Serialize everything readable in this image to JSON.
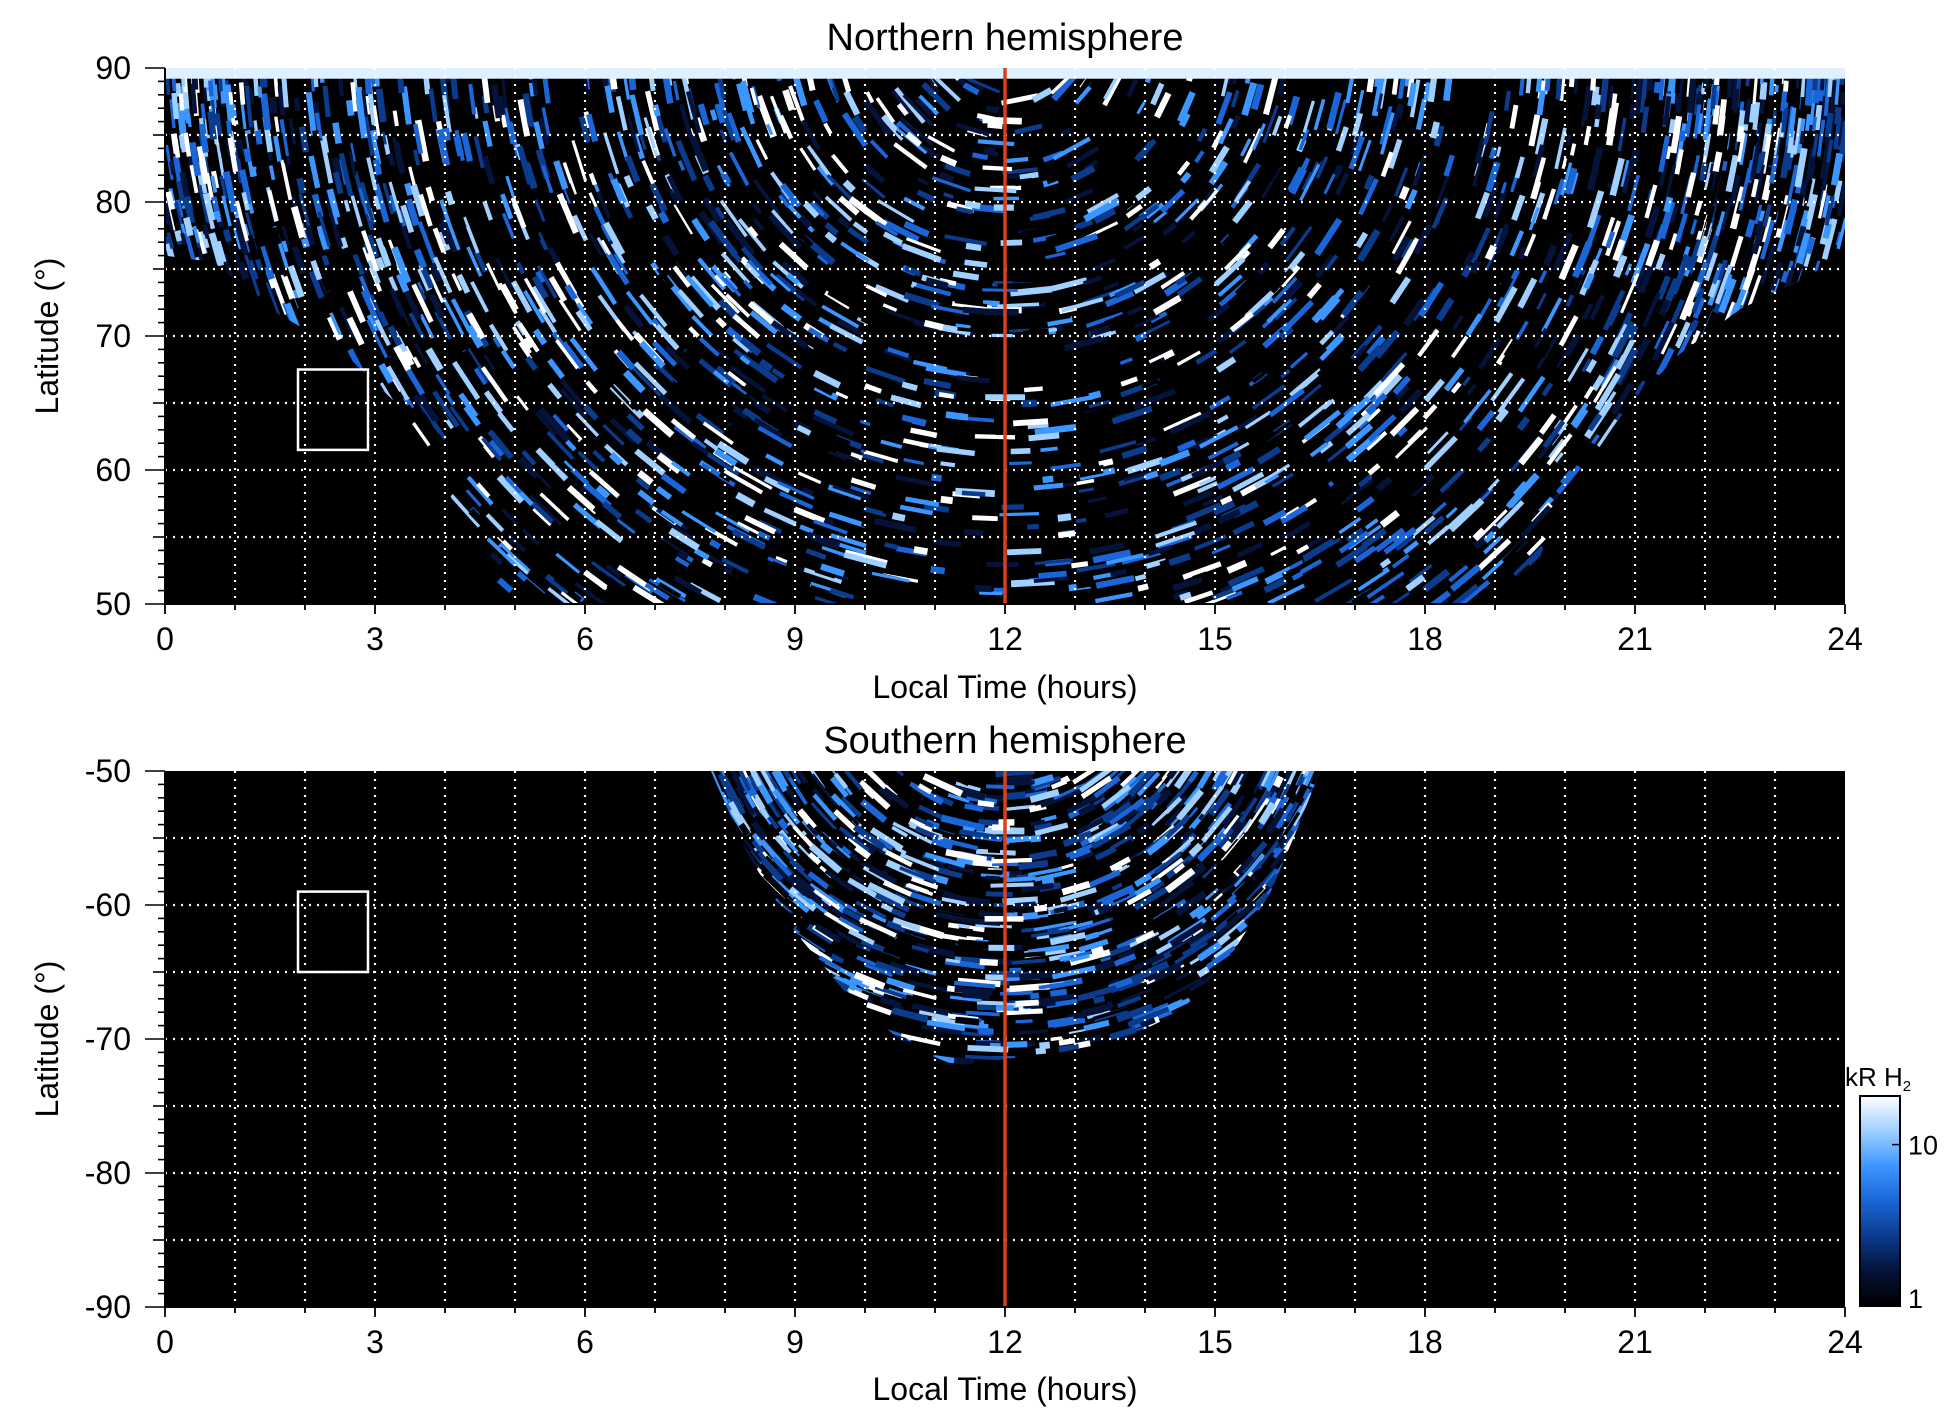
{
  "chart_data": [
    {
      "type": "heatmap",
      "title": "Northern hemisphere",
      "xlabel": "Local Time (hours)",
      "ylabel": "Latitude (°)",
      "xlim": [
        0,
        24
      ],
      "ylim": [
        50,
        90
      ],
      "x_ticks": [
        0,
        3,
        6,
        9,
        12,
        15,
        18,
        21,
        24
      ],
      "x_tick_labels": [
        "0",
        "3",
        "6",
        "9",
        "12",
        "15",
        "18",
        "21",
        "24"
      ],
      "y_ticks": [
        50,
        60,
        70,
        80,
        90
      ],
      "y_tick_labels": [
        "50",
        "60",
        "70",
        "80",
        "90"
      ],
      "grid_x": [
        1,
        2,
        3,
        4,
        5,
        6,
        7,
        8,
        9,
        10,
        11,
        13,
        14,
        15,
        16,
        17,
        18,
        19,
        20,
        21,
        22,
        23
      ],
      "grid_y": [
        55,
        60,
        65,
        70,
        75,
        80,
        85
      ],
      "grid": "dotted white",
      "marker_line": {
        "x": 12,
        "color": "#d8401a"
      },
      "box": {
        "x": [
          1.9,
          2.9
        ],
        "y": [
          61.5,
          67.5
        ],
        "color": "#ffffff"
      },
      "coverage_boundary": [
        [
          0,
          76
        ],
        [
          0.7,
          75.5
        ],
        [
          1.5,
          72
        ],
        [
          2.5,
          69
        ],
        [
          3.3,
          65
        ],
        [
          4.0,
          59
        ],
        [
          4.5,
          53
        ],
        [
          4.8,
          50
        ],
        [
          19.3,
          50
        ],
        [
          19.6,
          53
        ],
        [
          20.0,
          58
        ],
        [
          20.8,
          64
        ],
        [
          21.6,
          68.5
        ],
        [
          22.5,
          72
        ],
        [
          23.3,
          74
        ],
        [
          24,
          76
        ]
      ],
      "bright_band": [
        [
          4.0,
          73
        ],
        [
          5.0,
          71
        ],
        [
          6.0,
          69.5
        ],
        [
          7.0,
          71
        ],
        [
          8.0,
          72
        ],
        [
          9.0,
          74
        ]
      ]
    },
    {
      "type": "heatmap",
      "title": "Southern hemisphere",
      "xlabel": "Local Time (hours)",
      "ylabel": "Latitude (°)",
      "xlim": [
        0,
        24
      ],
      "ylim": [
        -90,
        -50
      ],
      "x_ticks": [
        0,
        3,
        6,
        9,
        12,
        15,
        18,
        21,
        24
      ],
      "x_tick_labels": [
        "0",
        "3",
        "6",
        "9",
        "12",
        "15",
        "18",
        "21",
        "24"
      ],
      "y_ticks": [
        -90,
        -80,
        -70,
        -60,
        -50
      ],
      "y_tick_labels": [
        "-90",
        "-80",
        "-70",
        "-60",
        "-50"
      ],
      "grid_x": [
        1,
        2,
        3,
        4,
        5,
        6,
        7,
        8,
        9,
        10,
        11,
        13,
        14,
        15,
        16,
        17,
        18,
        19,
        20,
        21,
        22,
        23
      ],
      "grid_y": [
        -85,
        -80,
        -75,
        -70,
        -65,
        -60,
        -55
      ],
      "grid": "dotted white",
      "marker_line": {
        "x": 12,
        "color": "#d8401a"
      },
      "box": {
        "x": [
          1.9,
          2.9
        ],
        "y": [
          -65,
          -59
        ],
        "color": "#ffffff"
      },
      "coverage_boundary": [
        [
          7.8,
          -50
        ],
        [
          8.3,
          -56
        ],
        [
          9.0,
          -62
        ],
        [
          9.8,
          -67
        ],
        [
          10.6,
          -70.5
        ],
        [
          11.3,
          -72
        ],
        [
          12.0,
          -71.5
        ],
        [
          12.8,
          -71
        ],
        [
          13.7,
          -70
        ],
        [
          14.5,
          -68
        ],
        [
          15.2,
          -64
        ],
        [
          15.8,
          -59
        ],
        [
          16.2,
          -54
        ],
        [
          16.5,
          -50
        ]
      ]
    }
  ],
  "colorbar": {
    "unit_label": "kR H",
    "unit_subscript": "2",
    "scale": "log",
    "range": [
      1,
      20
    ],
    "tick_values": [
      1,
      10
    ],
    "tick_labels": [
      "1",
      "10"
    ],
    "colors": [
      "#000000",
      "#05123a",
      "#0a3b8c",
      "#1a66d8",
      "#3c96ff",
      "#9fd0ff",
      "#ffffff"
    ]
  }
}
